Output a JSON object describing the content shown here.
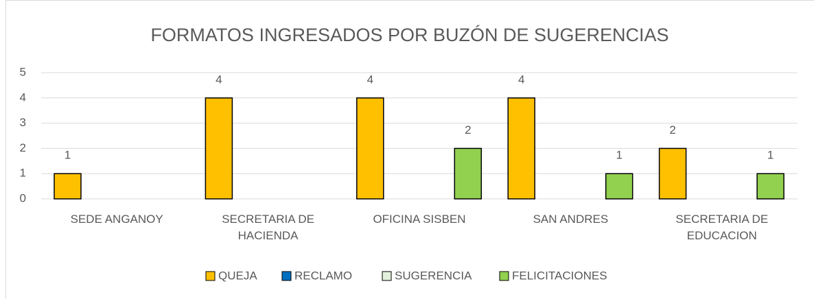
{
  "chart_data": {
    "type": "bar",
    "title": "FORMATOS INGRESADOS POR  BUZÓN DE SUGERENCIAS",
    "categories": [
      "SEDE ANGANOY",
      "SECRETARIA DE HACIENDA",
      "OFICINA SISBEN",
      "SAN ANDRES",
      "SECRETARIA DE EDUCACION"
    ],
    "series": [
      {
        "name": "QUEJA",
        "color": "#ffc000",
        "values": [
          1,
          4,
          4,
          4,
          2
        ]
      },
      {
        "name": "RECLAMO",
        "color": "#0070c0",
        "values": [
          null,
          null,
          null,
          null,
          null
        ]
      },
      {
        "name": "SUGERENCIA",
        "color": "#e2efda",
        "values": [
          null,
          null,
          null,
          null,
          null
        ]
      },
      {
        "name": "FELICITACIONES",
        "color": "#92d050",
        "values": [
          null,
          null,
          2,
          1,
          1
        ]
      }
    ],
    "ylim": [
      0,
      5
    ],
    "yticks": [
      0,
      1,
      2,
      3,
      4,
      5
    ],
    "grid": true,
    "legend": "bottom"
  }
}
